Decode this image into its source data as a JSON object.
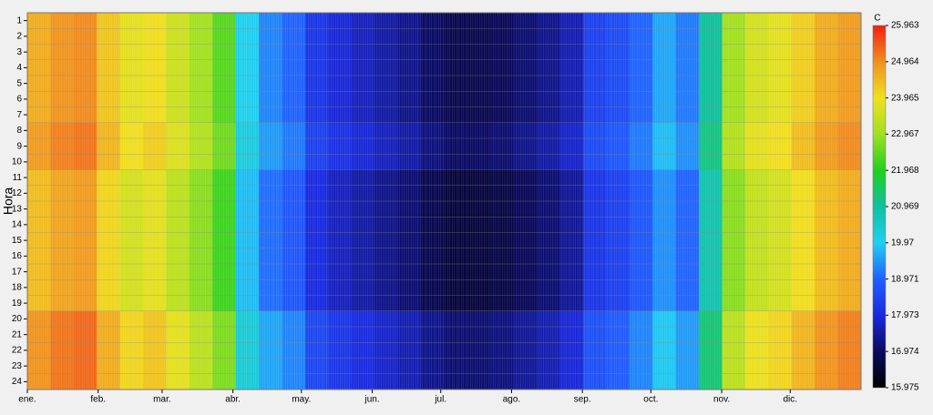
{
  "chart_data": {
    "type": "heatmap",
    "ylabel": "Hora",
    "colorbar_label": "C",
    "xlim": [
      1,
      366
    ],
    "xticks": [
      {
        "value": 1,
        "label": "ene."
      },
      {
        "value": 32,
        "label": "feb."
      },
      {
        "value": 60,
        "label": "mar."
      },
      {
        "value": 91,
        "label": "abr."
      },
      {
        "value": 121,
        "label": "may."
      },
      {
        "value": 152,
        "label": "jun."
      },
      {
        "value": 182,
        "label": "jul."
      },
      {
        "value": 213,
        "label": "ago."
      },
      {
        "value": 244,
        "label": "sep."
      },
      {
        "value": 274,
        "label": "oct."
      },
      {
        "value": 305,
        "label": "nov."
      },
      {
        "value": 335,
        "label": "dic."
      }
    ],
    "y": [
      1,
      2,
      3,
      4,
      5,
      6,
      7,
      8,
      9,
      10,
      11,
      12,
      13,
      14,
      15,
      16,
      17,
      18,
      19,
      20,
      21,
      22,
      23,
      24
    ],
    "zlim": [
      15.975,
      25.963
    ],
    "zticks": [
      15.975,
      16.974,
      17.973,
      18.971,
      19.97,
      20.969,
      21.968,
      22.967,
      23.965,
      24.964,
      25.963
    ],
    "colorscale": [
      "#000000",
      "#0a0a60",
      "#1a2adf",
      "#2060ff",
      "#20d0f0",
      "#10c0a0",
      "#20d020",
      "#a0e020",
      "#f0e020",
      "#f09020",
      "#f02010"
    ],
    "values": [
      [
        24.6,
        24.9,
        25.0,
        24.3,
        23.8,
        24.0,
        23.5,
        23.0,
        22.4,
        20.0,
        19.3,
        19.0,
        18.2,
        17.9,
        17.7,
        17.5,
        17.3,
        17.0,
        16.8,
        16.8,
        16.9,
        17.1,
        17.3,
        17.6,
        18.4,
        18.6,
        19.0,
        19.6,
        19.2,
        21.0,
        23.0,
        23.6,
        23.8,
        24.2,
        24.6,
        24.8
      ],
      [
        24.6,
        24.9,
        25.0,
        24.3,
        23.8,
        24.0,
        23.5,
        23.0,
        22.4,
        20.0,
        19.3,
        19.0,
        18.2,
        17.9,
        17.7,
        17.5,
        17.3,
        17.0,
        16.8,
        16.8,
        16.9,
        17.1,
        17.3,
        17.6,
        18.4,
        18.6,
        19.0,
        19.6,
        19.2,
        21.0,
        23.0,
        23.6,
        23.8,
        24.2,
        24.6,
        24.8
      ],
      [
        24.6,
        24.9,
        25.0,
        24.3,
        23.8,
        24.0,
        23.5,
        23.0,
        22.4,
        20.0,
        19.3,
        19.0,
        18.2,
        17.9,
        17.7,
        17.5,
        17.3,
        17.0,
        16.8,
        16.8,
        16.9,
        17.1,
        17.3,
        17.6,
        18.4,
        18.6,
        19.0,
        19.6,
        19.2,
        21.0,
        23.0,
        23.6,
        23.8,
        24.2,
        24.6,
        24.8
      ],
      [
        24.6,
        24.9,
        25.0,
        24.3,
        23.8,
        24.0,
        23.5,
        23.0,
        22.4,
        20.0,
        19.3,
        19.0,
        18.2,
        17.9,
        17.7,
        17.5,
        17.3,
        17.0,
        16.8,
        16.8,
        16.9,
        17.1,
        17.3,
        17.6,
        18.4,
        18.6,
        19.0,
        19.6,
        19.2,
        21.0,
        23.0,
        23.6,
        23.8,
        24.2,
        24.6,
        24.8
      ],
      [
        24.6,
        24.9,
        25.0,
        24.3,
        23.8,
        24.0,
        23.5,
        23.0,
        22.4,
        20.0,
        19.3,
        19.0,
        18.2,
        17.9,
        17.7,
        17.5,
        17.3,
        17.0,
        16.8,
        16.8,
        16.9,
        17.1,
        17.3,
        17.6,
        18.4,
        18.6,
        19.0,
        19.6,
        19.2,
        21.0,
        23.0,
        23.6,
        23.8,
        24.2,
        24.6,
        24.8
      ],
      [
        24.6,
        24.9,
        25.0,
        24.3,
        23.8,
        24.0,
        23.5,
        23.0,
        22.4,
        20.0,
        19.3,
        19.0,
        18.2,
        17.9,
        17.7,
        17.5,
        17.3,
        17.0,
        16.8,
        16.8,
        16.9,
        17.1,
        17.3,
        17.6,
        18.4,
        18.6,
        19.0,
        19.6,
        19.2,
        21.0,
        23.0,
        23.6,
        23.8,
        24.2,
        24.6,
        24.8
      ],
      [
        24.6,
        24.9,
        25.0,
        24.3,
        23.8,
        24.0,
        23.5,
        23.0,
        22.4,
        20.0,
        19.3,
        19.0,
        18.2,
        17.9,
        17.7,
        17.5,
        17.3,
        17.0,
        16.8,
        16.8,
        16.9,
        17.1,
        17.3,
        17.6,
        18.4,
        18.6,
        19.0,
        19.6,
        19.2,
        21.0,
        23.0,
        23.6,
        23.8,
        24.2,
        24.6,
        24.8
      ],
      [
        24.8,
        25.1,
        25.2,
        24.5,
        24.0,
        24.2,
        23.7,
        23.2,
        22.6,
        20.2,
        19.5,
        19.2,
        18.4,
        18.1,
        17.9,
        17.7,
        17.5,
        17.2,
        17.0,
        17.0,
        17.1,
        17.3,
        17.5,
        17.8,
        18.6,
        18.8,
        19.2,
        19.8,
        19.4,
        21.2,
        23.2,
        23.8,
        24.0,
        24.4,
        24.8,
        25.0
      ],
      [
        24.8,
        25.1,
        25.2,
        24.5,
        24.0,
        24.2,
        23.7,
        23.2,
        22.6,
        20.2,
        19.5,
        19.2,
        18.4,
        18.1,
        17.9,
        17.7,
        17.5,
        17.2,
        17.0,
        17.0,
        17.1,
        17.3,
        17.5,
        17.8,
        18.6,
        18.8,
        19.2,
        19.8,
        19.4,
        21.2,
        23.2,
        23.8,
        24.0,
        24.4,
        24.8,
        25.0
      ],
      [
        24.8,
        25.1,
        25.2,
        24.5,
        24.0,
        24.2,
        23.7,
        23.2,
        22.6,
        20.2,
        19.5,
        19.2,
        18.4,
        18.1,
        17.9,
        17.7,
        17.5,
        17.2,
        17.0,
        17.0,
        17.1,
        17.3,
        17.5,
        17.8,
        18.6,
        18.8,
        19.2,
        19.8,
        19.4,
        21.2,
        23.2,
        23.8,
        24.0,
        24.4,
        24.8,
        25.0
      ],
      [
        24.4,
        24.7,
        24.8,
        24.1,
        23.6,
        23.8,
        23.3,
        22.8,
        22.2,
        19.8,
        19.1,
        18.8,
        18.0,
        17.7,
        17.5,
        17.3,
        17.1,
        16.8,
        16.6,
        16.6,
        16.7,
        16.9,
        17.1,
        17.4,
        18.2,
        18.4,
        18.8,
        19.4,
        19.0,
        20.8,
        22.8,
        23.4,
        23.6,
        24.0,
        24.4,
        24.6
      ],
      [
        24.4,
        24.7,
        24.8,
        24.1,
        23.6,
        23.8,
        23.3,
        22.8,
        22.2,
        19.8,
        19.1,
        18.8,
        18.0,
        17.7,
        17.5,
        17.3,
        17.1,
        16.8,
        16.6,
        16.6,
        16.7,
        16.9,
        17.1,
        17.4,
        18.2,
        18.4,
        18.8,
        19.4,
        19.0,
        20.8,
        22.8,
        23.4,
        23.6,
        24.0,
        24.4,
        24.6
      ],
      [
        24.4,
        24.7,
        24.8,
        24.1,
        23.6,
        23.8,
        23.3,
        22.8,
        22.2,
        19.8,
        19.1,
        18.8,
        18.0,
        17.7,
        17.5,
        17.3,
        17.1,
        16.8,
        16.6,
        16.6,
        16.7,
        16.9,
        17.1,
        17.4,
        18.2,
        18.4,
        18.8,
        19.4,
        19.0,
        20.8,
        22.8,
        23.4,
        23.6,
        24.0,
        24.4,
        24.6
      ],
      [
        24.4,
        24.7,
        24.8,
        24.1,
        23.6,
        23.8,
        23.3,
        22.8,
        22.2,
        19.8,
        19.1,
        18.8,
        18.0,
        17.7,
        17.5,
        17.3,
        17.1,
        16.8,
        16.6,
        16.6,
        16.7,
        16.9,
        17.1,
        17.4,
        18.2,
        18.4,
        18.8,
        19.4,
        19.0,
        20.8,
        22.8,
        23.4,
        23.6,
        24.0,
        24.4,
        24.6
      ],
      [
        24.4,
        24.7,
        24.8,
        24.1,
        23.6,
        23.8,
        23.3,
        22.8,
        22.2,
        19.8,
        19.1,
        18.8,
        18.0,
        17.7,
        17.5,
        17.3,
        17.1,
        16.8,
        16.6,
        16.6,
        16.7,
        16.9,
        17.1,
        17.4,
        18.2,
        18.4,
        18.8,
        19.4,
        19.0,
        20.8,
        22.8,
        23.4,
        23.6,
        24.0,
        24.4,
        24.6
      ],
      [
        24.4,
        24.7,
        24.8,
        24.1,
        23.6,
        23.8,
        23.3,
        22.8,
        22.2,
        19.8,
        19.1,
        18.8,
        18.0,
        17.7,
        17.5,
        17.3,
        17.1,
        16.8,
        16.6,
        16.6,
        16.7,
        16.9,
        17.1,
        17.4,
        18.2,
        18.4,
        18.8,
        19.4,
        19.0,
        20.8,
        22.8,
        23.4,
        23.6,
        24.0,
        24.4,
        24.6
      ],
      [
        24.4,
        24.7,
        24.8,
        24.1,
        23.6,
        23.8,
        23.3,
        22.8,
        22.2,
        19.8,
        19.1,
        18.8,
        18.0,
        17.7,
        17.5,
        17.3,
        17.1,
        16.8,
        16.6,
        16.6,
        16.7,
        16.9,
        17.1,
        17.4,
        18.2,
        18.4,
        18.8,
        19.4,
        19.0,
        20.8,
        22.8,
        23.4,
        23.6,
        24.0,
        24.4,
        24.6
      ],
      [
        24.4,
        24.7,
        24.8,
        24.1,
        23.6,
        23.8,
        23.3,
        22.8,
        22.2,
        19.8,
        19.1,
        18.8,
        18.0,
        17.7,
        17.5,
        17.3,
        17.1,
        16.8,
        16.6,
        16.6,
        16.7,
        16.9,
        17.1,
        17.4,
        18.2,
        18.4,
        18.8,
        19.4,
        19.0,
        20.8,
        22.8,
        23.4,
        23.6,
        24.0,
        24.4,
        24.6
      ],
      [
        24.4,
        24.7,
        24.8,
        24.1,
        23.6,
        23.8,
        23.3,
        22.8,
        22.2,
        19.8,
        19.1,
        18.8,
        18.0,
        17.7,
        17.5,
        17.3,
        17.1,
        16.8,
        16.6,
        16.6,
        16.7,
        16.9,
        17.1,
        17.4,
        18.2,
        18.4,
        18.8,
        19.4,
        19.0,
        20.8,
        22.8,
        23.4,
        23.6,
        24.0,
        24.4,
        24.6
      ],
      [
        24.9,
        25.2,
        25.3,
        24.6,
        24.1,
        24.3,
        23.8,
        23.3,
        22.7,
        20.3,
        19.6,
        19.3,
        18.5,
        18.2,
        18.0,
        17.8,
        17.6,
        17.3,
        17.1,
        17.1,
        17.2,
        17.4,
        17.6,
        17.9,
        18.7,
        18.9,
        19.3,
        19.9,
        19.5,
        21.3,
        23.3,
        23.9,
        24.1,
        24.5,
        24.9,
        25.1
      ],
      [
        24.9,
        25.2,
        25.3,
        24.6,
        24.1,
        24.3,
        23.8,
        23.3,
        22.7,
        20.3,
        19.6,
        19.3,
        18.5,
        18.2,
        18.0,
        17.8,
        17.6,
        17.3,
        17.1,
        17.1,
        17.2,
        17.4,
        17.6,
        17.9,
        18.7,
        18.9,
        19.3,
        19.9,
        19.5,
        21.3,
        23.3,
        23.9,
        24.1,
        24.5,
        24.9,
        25.1
      ],
      [
        24.9,
        25.2,
        25.3,
        24.6,
        24.1,
        24.3,
        23.8,
        23.3,
        22.7,
        20.3,
        19.6,
        19.3,
        18.5,
        18.2,
        18.0,
        17.8,
        17.6,
        17.3,
        17.1,
        17.1,
        17.2,
        17.4,
        17.6,
        17.9,
        18.7,
        18.9,
        19.3,
        19.9,
        19.5,
        21.3,
        23.3,
        23.9,
        24.1,
        24.5,
        24.9,
        25.1
      ],
      [
        24.9,
        25.2,
        25.3,
        24.6,
        24.1,
        24.3,
        23.8,
        23.3,
        22.7,
        20.3,
        19.6,
        19.3,
        18.5,
        18.2,
        18.0,
        17.8,
        17.6,
        17.3,
        17.1,
        17.1,
        17.2,
        17.4,
        17.6,
        17.9,
        18.7,
        18.9,
        19.3,
        19.9,
        19.5,
        21.3,
        23.3,
        23.9,
        24.1,
        24.5,
        24.9,
        25.1
      ],
      [
        24.9,
        25.2,
        25.3,
        24.6,
        24.1,
        24.3,
        23.8,
        23.3,
        22.7,
        20.3,
        19.6,
        19.3,
        18.5,
        18.2,
        18.0,
        17.8,
        17.6,
        17.3,
        17.1,
        17.1,
        17.2,
        17.4,
        17.6,
        17.9,
        18.7,
        18.9,
        19.3,
        19.9,
        19.5,
        21.3,
        23.3,
        23.9,
        24.1,
        24.5,
        24.9,
        25.1
      ]
    ]
  }
}
